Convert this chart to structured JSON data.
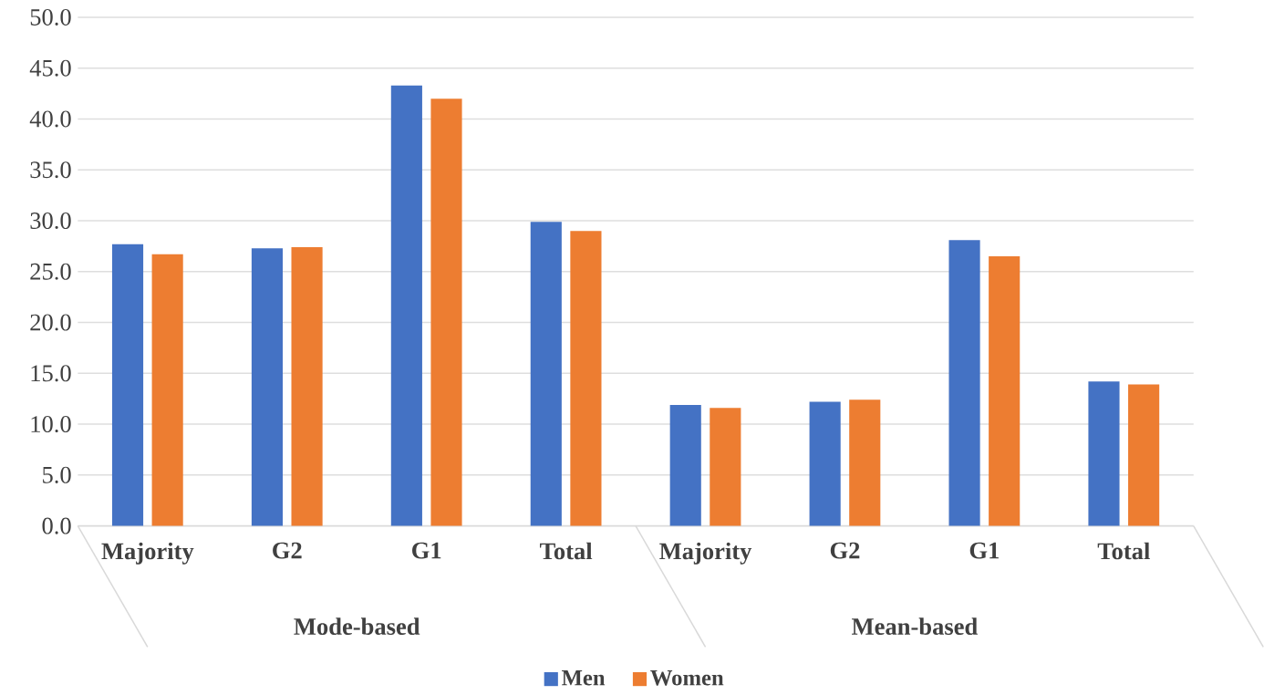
{
  "chart_data": {
    "type": "bar",
    "categories": [
      "Majority",
      "G2",
      "G1",
      "Total",
      "Majority",
      "G2",
      "G1",
      "Total"
    ],
    "series": [
      {
        "name": "Men",
        "color": "#4472c4",
        "values": [
          27.7,
          27.3,
          43.3,
          29.9,
          11.9,
          12.2,
          28.1,
          14.2
        ]
      },
      {
        "name": "Women",
        "color": "#ed7d31",
        "values": [
          26.7,
          27.4,
          42.0,
          29.0,
          11.6,
          12.4,
          26.5,
          13.9
        ]
      }
    ],
    "annotations": [
      "Mode-based",
      "Mean-based"
    ],
    "ylim": [
      0,
      50
    ],
    "yticks": [
      {
        "value": 0,
        "label": "0.0"
      },
      {
        "value": 5,
        "label": "5.0"
      },
      {
        "value": 10,
        "label": "10.0"
      },
      {
        "value": 15,
        "label": "15.0"
      },
      {
        "value": 20,
        "label": "20.0"
      },
      {
        "value": 25,
        "label": "25.0"
      },
      {
        "value": 30,
        "label": "30.0"
      },
      {
        "value": 35,
        "label": "35.0"
      },
      {
        "value": 40,
        "label": "40.0"
      },
      {
        "value": 45,
        "label": "45.0"
      },
      {
        "value": 50,
        "label": "50.0"
      }
    ],
    "grid": "y",
    "legend": "bottom"
  }
}
